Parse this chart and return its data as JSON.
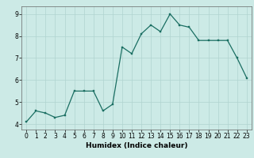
{
  "x": [
    0,
    1,
    2,
    3,
    4,
    5,
    6,
    7,
    8,
    9,
    10,
    11,
    12,
    13,
    14,
    15,
    16,
    17,
    18,
    19,
    20,
    21,
    22,
    23
  ],
  "y": [
    4.1,
    4.6,
    4.5,
    4.3,
    4.4,
    5.5,
    5.5,
    5.5,
    4.6,
    4.9,
    7.5,
    7.2,
    8.1,
    8.5,
    8.2,
    9.0,
    8.5,
    8.4,
    7.8,
    7.8,
    7.8,
    7.8,
    7.0,
    6.1
  ],
  "xlabel": "Humidex (Indice chaleur)",
  "xlim": [
    -0.5,
    23.5
  ],
  "ylim": [
    3.75,
    9.35
  ],
  "yticks": [
    4,
    5,
    6,
    7,
    8,
    9
  ],
  "xticks": [
    0,
    1,
    2,
    3,
    4,
    5,
    6,
    7,
    8,
    9,
    10,
    11,
    12,
    13,
    14,
    15,
    16,
    17,
    18,
    19,
    20,
    21,
    22,
    23
  ],
  "line_color": "#1a6e62",
  "bg_color": "#cceae6",
  "grid_color": "#b0d4d0",
  "tick_label_fontsize": 5.5,
  "xlabel_fontsize": 6.5
}
